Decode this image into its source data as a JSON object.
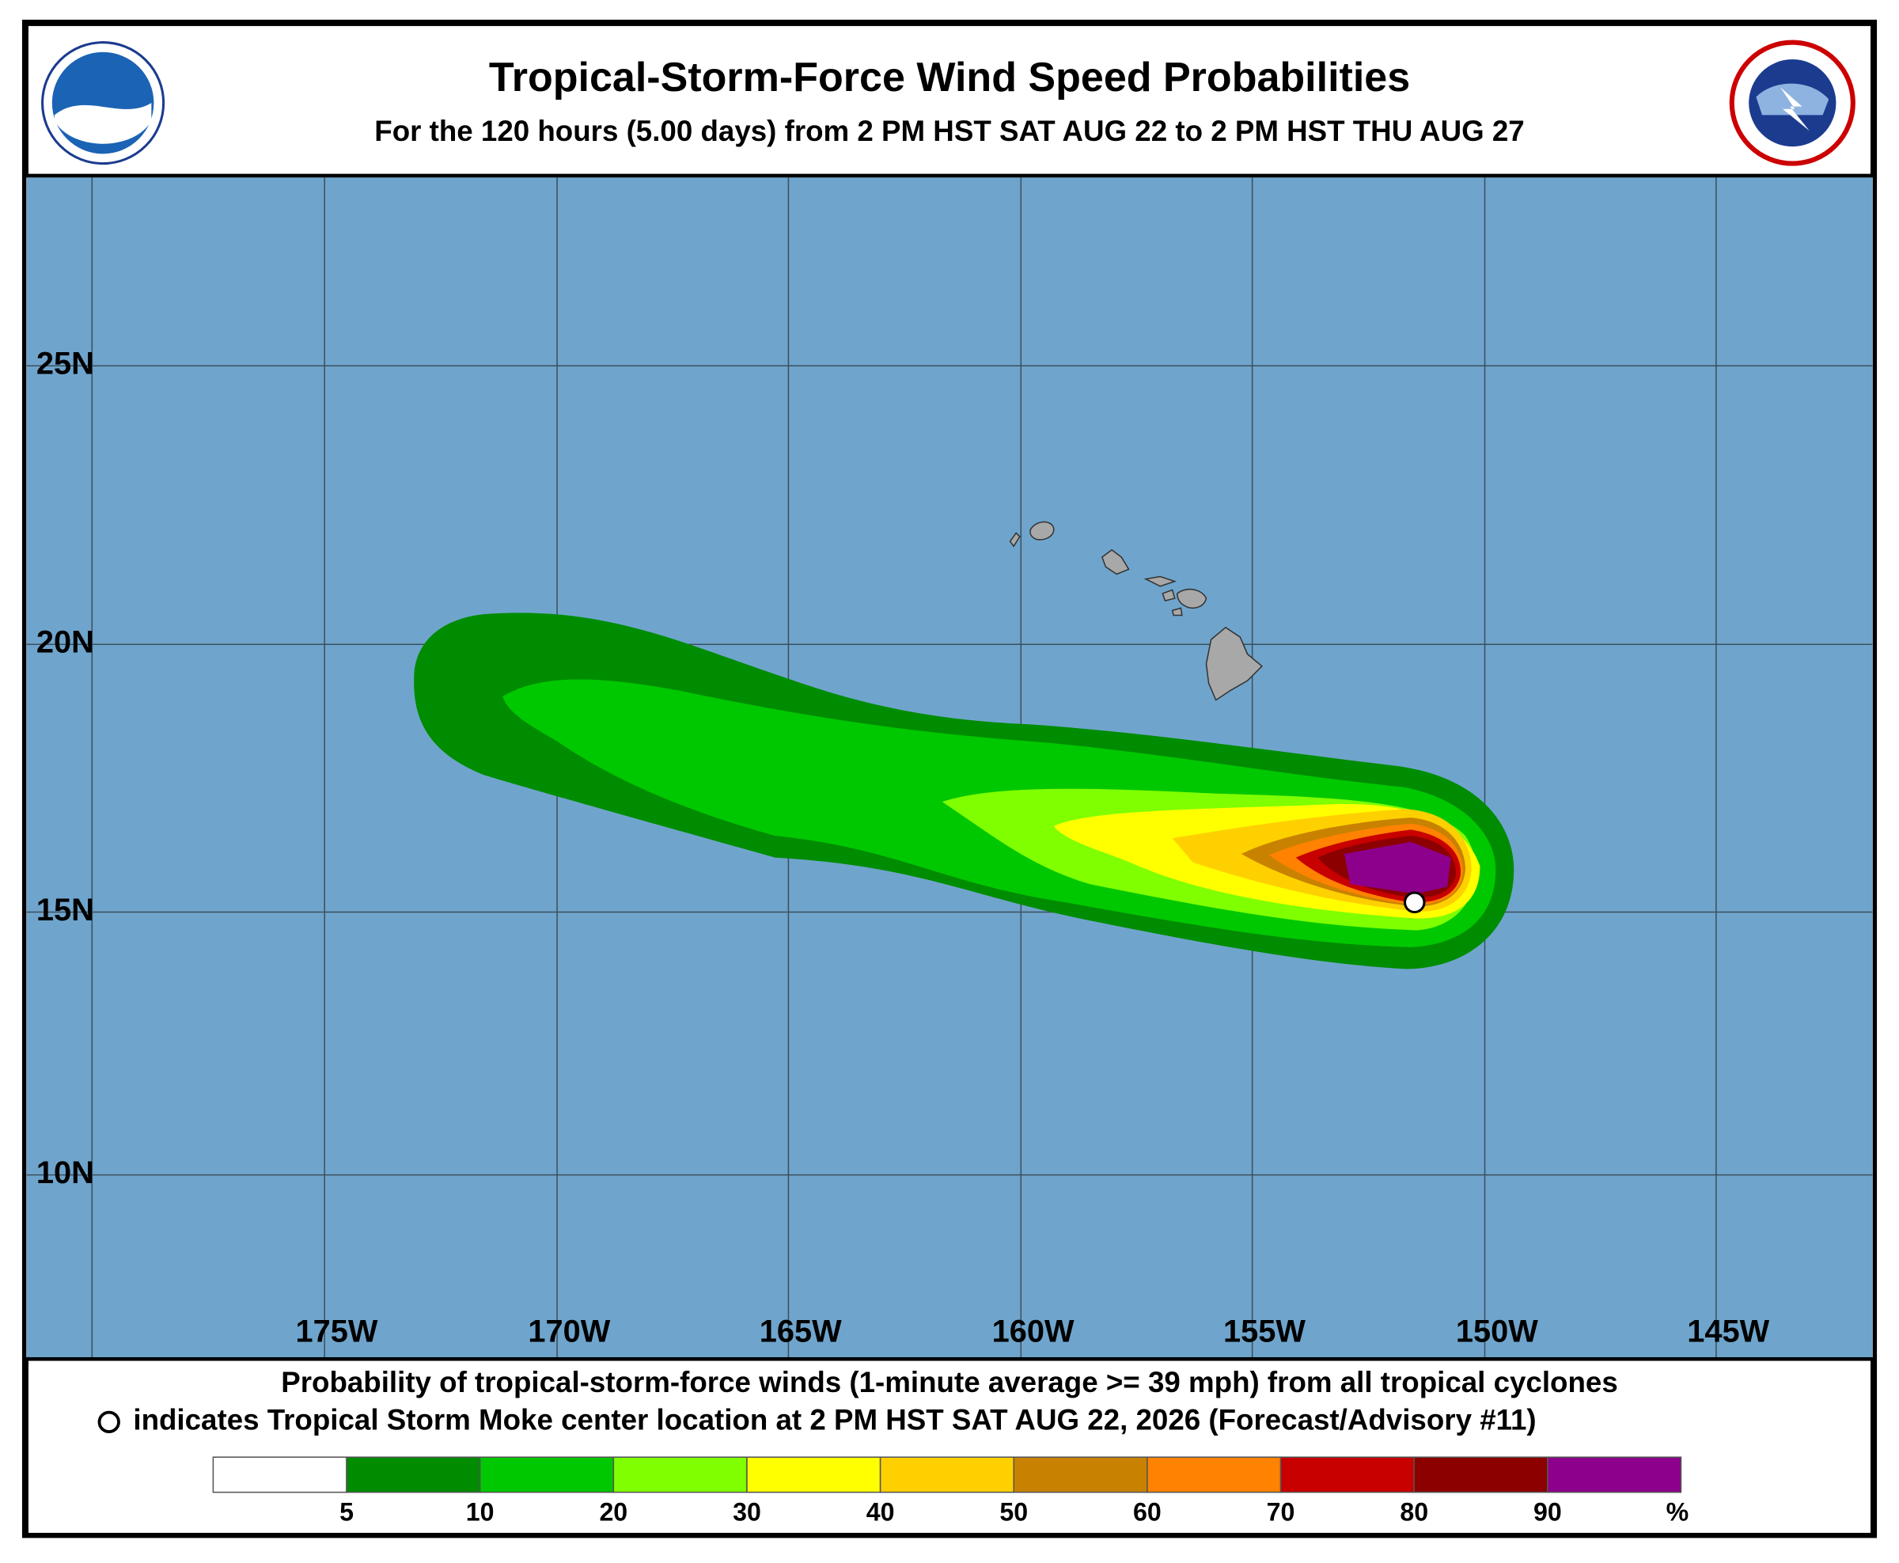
{
  "header": {
    "title": "Tropical-Storm-Force Wind Speed Probabilities",
    "subtitle": "For the 120 hours (5.00 days) from 2 PM HST SAT AUG 22 to 2 PM HST THU AUG 27"
  },
  "map": {
    "lat_labels": [
      "25N",
      "20N",
      "15N",
      "10N"
    ],
    "lon_labels": [
      "175W",
      "170W",
      "165W",
      "160W",
      "155W",
      "150W",
      "145W"
    ]
  },
  "footer": {
    "line1": "Probability of tropical-storm-force winds (1-minute average >= 39 mph) from all tropical cyclones",
    "line2": "indicates Tropical Storm Moke center location at 2 PM HST SAT AUG 22, 2026 (Forecast/Advisory #11)"
  },
  "legend": {
    "colors": [
      "#ffffff",
      "#008c00",
      "#00c800",
      "#7fff00",
      "#ffff00",
      "#ffd000",
      "#c88200",
      "#ff8200",
      "#c80000",
      "#8c0000",
      "#8c008c"
    ],
    "labels": [
      "5",
      "10",
      "20",
      "30",
      "40",
      "50",
      "60",
      "70",
      "80",
      "90"
    ],
    "unit": "%"
  }
}
